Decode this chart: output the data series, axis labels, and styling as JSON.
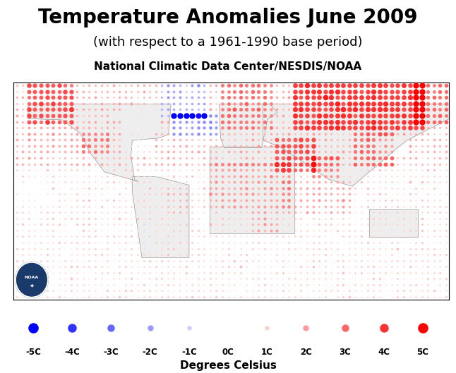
{
  "title": "Temperature Anomalies June 2009",
  "subtitle": "(with respect to a 1961-1990 base period)",
  "source": "National Climatic Data Center/NESDIS/NOAA",
  "xlabel": "Degrees Celsius",
  "title_fontsize": 20,
  "subtitle_fontsize": 13,
  "source_fontsize": 11,
  "legend_labels": [
    "-5C",
    "-4C",
    "-3C",
    "-2C",
    "-1C",
    "0C",
    "1C",
    "2C",
    "3C",
    "4C",
    "5C"
  ],
  "legend_values": [
    -5,
    -4,
    -3,
    -2,
    -1,
    0,
    1,
    2,
    3,
    4,
    5
  ],
  "background_color": "#ffffff",
  "coastline_color": "#888888",
  "fig_width": 6.46,
  "fig_height": 5.29,
  "dpi": 100
}
